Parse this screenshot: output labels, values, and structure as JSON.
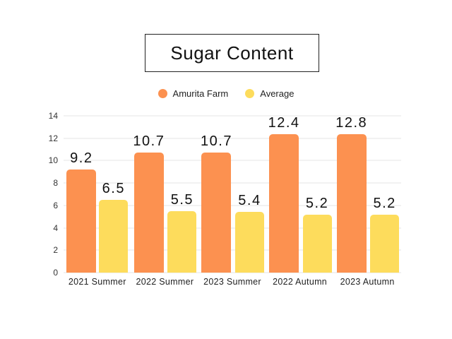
{
  "chart_data": {
    "type": "bar",
    "title": "Sugar Content",
    "categories": [
      "2021 Summer",
      "2022 Summer",
      "2023 Summer",
      "2022 Autumn",
      "2023 Autumn"
    ],
    "series": [
      {
        "name": "Amurita Farm",
        "color": "#FC9150",
        "values": [
          9.2,
          10.7,
          10.7,
          12.4,
          12.8
        ]
      },
      {
        "name": "Average",
        "color": "#FDDC5C",
        "values": [
          6.5,
          5.5,
          5.4,
          5.2,
          5.2
        ]
      }
    ],
    "ylim": [
      0,
      14
    ],
    "ytick_step": 2,
    "yticks": [
      0,
      2,
      4,
      6,
      8,
      10,
      12,
      14
    ],
    "grid": true,
    "legend_position": "top",
    "data_labels": true,
    "colors": {
      "background": "#FFFFFF",
      "gridline": "#E4E4E4",
      "data_label_text": "#111111",
      "axis_text": "#333333",
      "title_border": "#222222"
    }
  }
}
